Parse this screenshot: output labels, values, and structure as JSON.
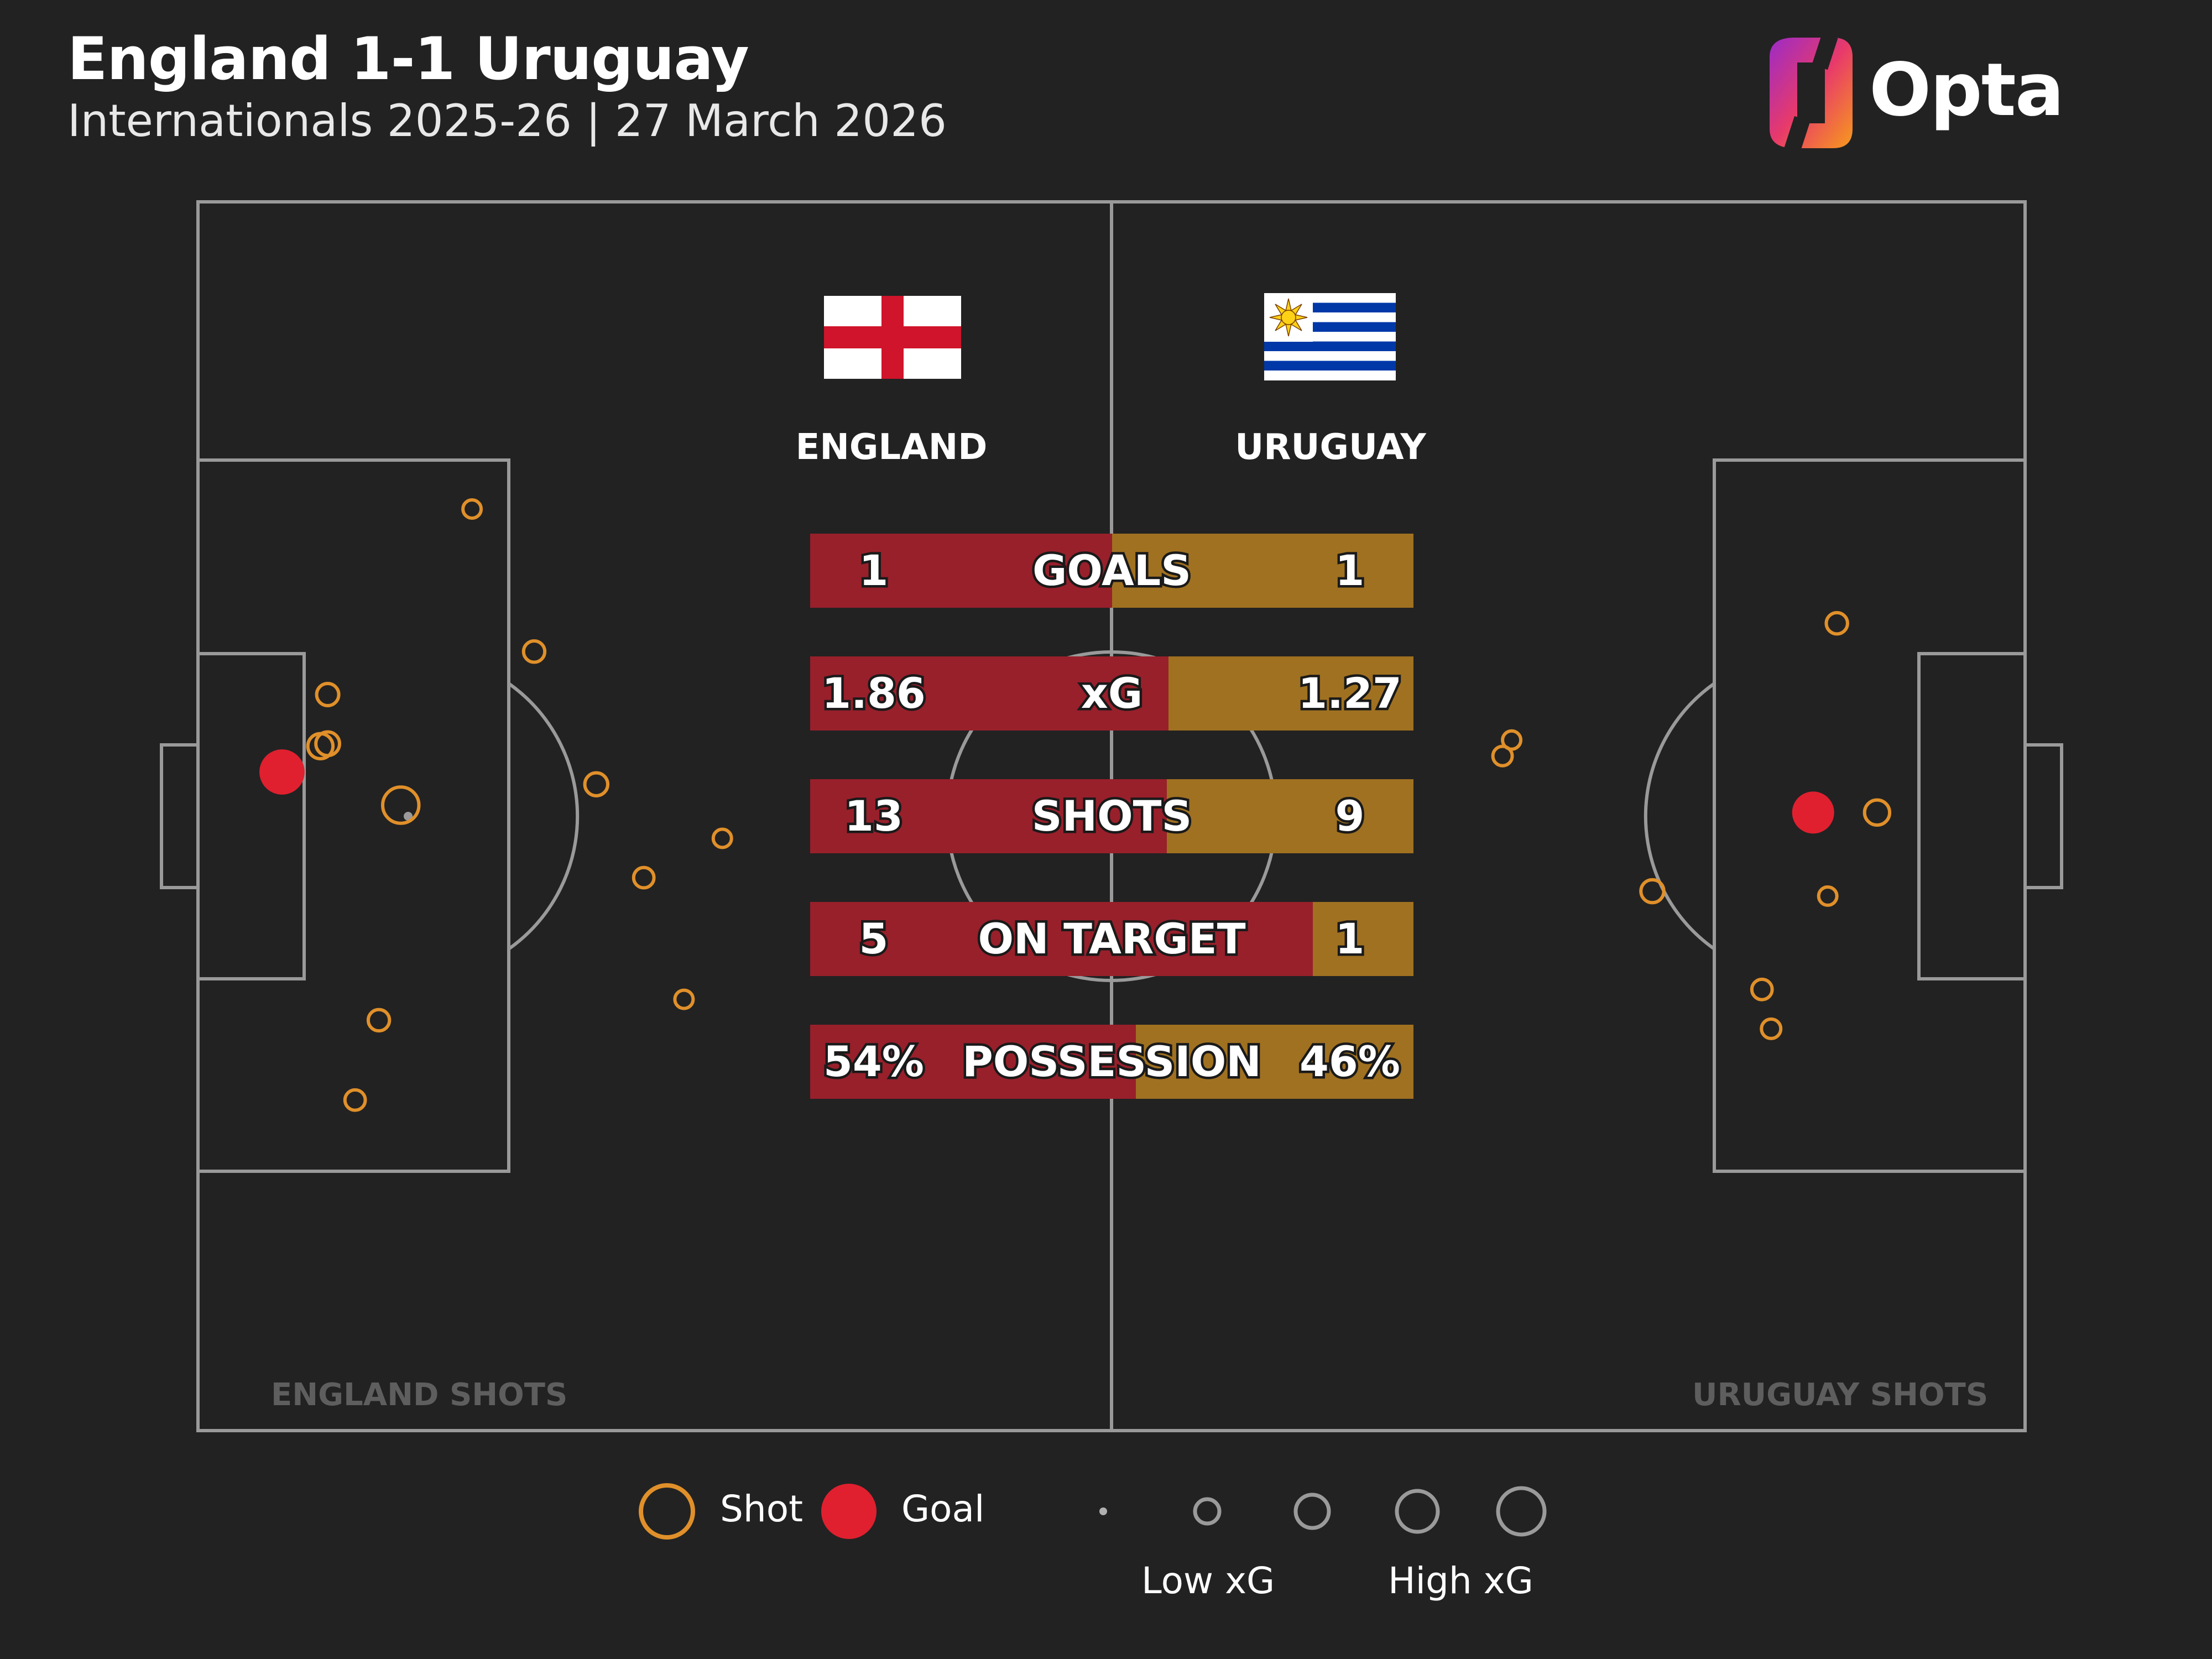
{
  "header": {
    "title": "England 1-1 Uruguay",
    "subtitle": "Internationals 2025-26 | 27 March 2026",
    "brand": "Opta"
  },
  "teams": {
    "home": {
      "name": "ENGLAND",
      "shots_label": "ENGLAND SHOTS",
      "color": "#98202b"
    },
    "away": {
      "name": "URUGUAY",
      "shots_label": "URUGUAY SHOTS",
      "color": "#a07121"
    }
  },
  "colors": {
    "background": "#222222",
    "pitch_lines": "#9a9a9a",
    "shot": "#e0902a",
    "goal": "#e0202f"
  },
  "legend": {
    "shot": "Shot",
    "goal": "Goal",
    "low_xg": "Low xG",
    "high_xg": "High xG"
  },
  "chart_data": [
    {
      "type": "bar",
      "categories": [
        "GOALS",
        "xG",
        "SHOTS",
        "ON TARGET",
        "POSSESSION"
      ],
      "series": [
        {
          "name": "ENGLAND",
          "values": [
            1,
            1.86,
            13,
            5,
            54
          ],
          "labels": [
            "1",
            "1.86",
            "13",
            "5",
            "54%"
          ]
        },
        {
          "name": "URUGUAY",
          "values": [
            1,
            1.27,
            9,
            1,
            46
          ],
          "labels": [
            "1",
            "1.27",
            "9",
            "1",
            "46%"
          ]
        }
      ]
    },
    {
      "type": "scatter",
      "x_unit": "pitch length (0-100, England attacking left goal)",
      "y_unit": "pitch width (0-100)",
      "points": [
        {
          "team": "ENGLAND",
          "x": 4.6,
          "y": 46.4,
          "xg": 0.3,
          "goal": true
        },
        {
          "team": "ENGLAND",
          "x": 11.1,
          "y": 49.1,
          "xg": 0.17,
          "goal": false
        },
        {
          "team": "ENGLAND",
          "x": 7.1,
          "y": 40.1,
          "xg": 0.04,
          "goal": false
        },
        {
          "team": "ENGLAND",
          "x": 6.7,
          "y": 44.3,
          "xg": 0.06,
          "goal": false
        },
        {
          "team": "ENGLAND",
          "x": 7.1,
          "y": 44.1,
          "xg": 0.05,
          "goal": false
        },
        {
          "team": "ENGLAND",
          "x": 15.0,
          "y": 25.0,
          "xg": 0.02,
          "goal": false
        },
        {
          "team": "ENGLAND",
          "x": 18.4,
          "y": 36.6,
          "xg": 0.035,
          "goal": false
        },
        {
          "team": "ENGLAND",
          "x": 21.8,
          "y": 47.4,
          "xg": 0.045,
          "goal": false
        },
        {
          "team": "ENGLAND",
          "x": 24.4,
          "y": 55.0,
          "xg": 0.03,
          "goal": false
        },
        {
          "team": "ENGLAND",
          "x": 28.7,
          "y": 51.8,
          "xg": 0.02,
          "goal": false
        },
        {
          "team": "ENGLAND",
          "x": 26.6,
          "y": 64.9,
          "xg": 0.02,
          "goal": false
        },
        {
          "team": "ENGLAND",
          "x": 9.9,
          "y": 66.6,
          "xg": 0.035,
          "goal": false
        },
        {
          "team": "ENGLAND",
          "x": 8.6,
          "y": 73.1,
          "xg": 0.03,
          "goal": false
        },
        {
          "team": "URUGUAY",
          "x": 88.4,
          "y": 49.7,
          "xg": 0.25,
          "goal": true
        },
        {
          "team": "URUGUAY",
          "x": 91.9,
          "y": 49.7,
          "xg": 0.06,
          "goal": false
        },
        {
          "team": "URUGUAY",
          "x": 89.7,
          "y": 34.3,
          "xg": 0.035,
          "goal": false
        },
        {
          "team": "URUGUAY",
          "x": 71.9,
          "y": 43.8,
          "xg": 0.02,
          "goal": false
        },
        {
          "team": "URUGUAY",
          "x": 71.4,
          "y": 45.1,
          "xg": 0.025,
          "goal": false
        },
        {
          "team": "URUGUAY",
          "x": 79.6,
          "y": 56.1,
          "xg": 0.045,
          "goal": false
        },
        {
          "team": "URUGUAY",
          "x": 89.2,
          "y": 56.5,
          "xg": 0.02,
          "goal": false
        },
        {
          "team": "URUGUAY",
          "x": 85.6,
          "y": 64.1,
          "xg": 0.03,
          "goal": false
        },
        {
          "team": "URUGUAY",
          "x": 86.1,
          "y": 67.3,
          "xg": 0.025,
          "goal": false
        }
      ]
    }
  ]
}
